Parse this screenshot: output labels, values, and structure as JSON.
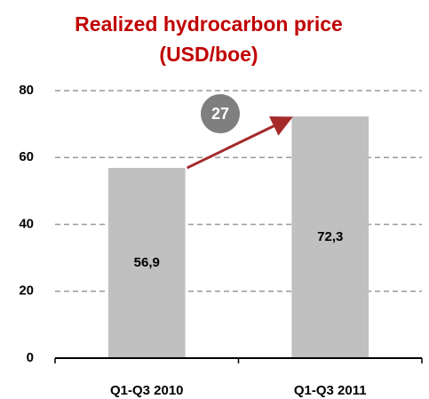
{
  "chart_data": {
    "type": "bar",
    "title": "Realized hydrocarbon price (USD/boe)",
    "categories": [
      "Q1-Q3 2010",
      "Q1-Q3 2011"
    ],
    "values": [
      56.9,
      72.3
    ],
    "value_labels": [
      "56,9",
      "72,3"
    ],
    "color": "#c0c0c0",
    "ylim": [
      0,
      80
    ],
    "yticks": [
      0,
      20,
      40,
      60,
      80
    ],
    "grid": true,
    "annotation": "27"
  }
}
